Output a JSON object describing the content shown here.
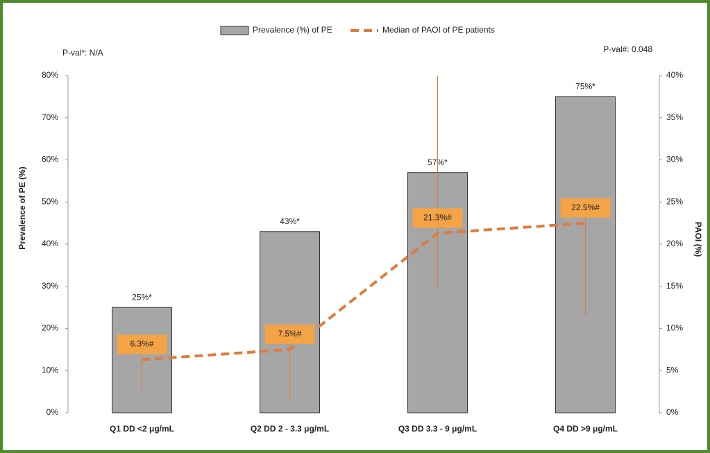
{
  "chart_data": {
    "type": "bar_line",
    "categories": [
      "Q1 DD <2 μg/mL",
      "Q2 DD 2 - 3.3 μg/mL",
      "Q3 DD 3.3 - 9 μg/mL",
      "Q4 DD >9 μg/mL"
    ],
    "series": [
      {
        "name": "Prevalence (%) of PE",
        "type": "bar",
        "color": "#a6a6a6",
        "values": [
          25,
          43,
          57,
          75
        ],
        "value_labels": [
          "25%*",
          "43%*",
          "57%*",
          "75%*"
        ]
      },
      {
        "name": "Median of PAOI of PE patients",
        "type": "line",
        "axis": "y2",
        "color": "#e07b39",
        "values": [
          6.3,
          7.5,
          21.3,
          22.5
        ],
        "value_labels": [
          "6.3%#",
          "7.5%#",
          "21.3%#",
          "22.5%#"
        ],
        "error_low": [
          2.5,
          1.6,
          14.8,
          11.5
        ],
        "error_high": [
          9.5,
          10.3,
          40,
          23.5
        ]
      }
    ],
    "ylabel": "Prevalence of PE (%)",
    "y2label": "PAOI (%)",
    "annotations": [
      "P-val*: N/A",
      "P-val#: 0.048"
    ],
    "ylim": [
      0,
      80
    ],
    "yticks": [
      {
        "value": 0,
        "label": "0%"
      },
      {
        "value": 10,
        "label": "10%"
      },
      {
        "value": 20,
        "label": "20%"
      },
      {
        "value": 30,
        "label": "30%"
      },
      {
        "value": 40,
        "label": "40%"
      },
      {
        "value": 50,
        "label": "50%"
      },
      {
        "value": 60,
        "label": "60%"
      },
      {
        "value": 70,
        "label": "70%"
      },
      {
        "value": 80,
        "label": "80%"
      }
    ],
    "y2lim": [
      0,
      40
    ],
    "y2ticks": [
      {
        "value": 0,
        "label": "0%"
      },
      {
        "value": 5,
        "label": "5%"
      },
      {
        "value": 10,
        "label": "10%"
      },
      {
        "value": 15,
        "label": "15%"
      },
      {
        "value": 20,
        "label": "20%"
      },
      {
        "value": 25,
        "label": "25%"
      },
      {
        "value": 30,
        "label": "30%"
      },
      {
        "value": 35,
        "label": "35%"
      },
      {
        "value": 40,
        "label": "40%"
      }
    ],
    "grid": false,
    "legend": "top"
  }
}
